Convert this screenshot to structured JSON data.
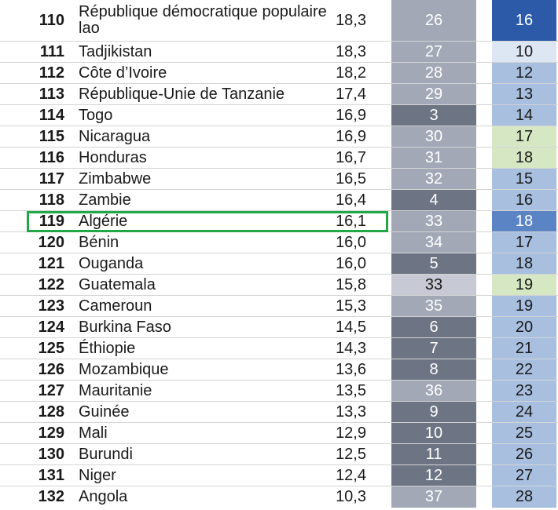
{
  "colors": {
    "c1_dark": "#6d7584",
    "c1_mid": "#a2a8b6",
    "c1_light": "#c7cad4",
    "c2_dark": "#2c5aa8",
    "c2_mid": "#5b84c4",
    "c2_base": "#a9bfe0",
    "c2_pale": "#dde6f3",
    "c2_green": "#d6e8c3",
    "highlight_border": "#22a746"
  },
  "rows": [
    {
      "rank": "110",
      "country": "République démocratique populaire lao",
      "score": "18,3",
      "col1": "26",
      "col2": "16",
      "c1": "c1_mid",
      "c2": "c2_dark"
    },
    {
      "rank": "111",
      "country": "Tadjikistan",
      "score": "18,3",
      "col1": "27",
      "col2": "10",
      "c1": "c1_mid",
      "c2": "c2_pale"
    },
    {
      "rank": "112",
      "country": "Côte d’Ivoire",
      "score": "18,2",
      "col1": "28",
      "col2": "12",
      "c1": "c1_mid",
      "c2": "c2_base"
    },
    {
      "rank": "113",
      "country": "République-Unie de Tanzanie",
      "score": "17,4",
      "col1": "29",
      "col2": "13",
      "c1": "c1_mid",
      "c2": "c2_base"
    },
    {
      "rank": "114",
      "country": "Togo",
      "score": "16,9",
      "col1": "3",
      "col2": "14",
      "c1": "c1_dark",
      "c2": "c2_base"
    },
    {
      "rank": "115",
      "country": "Nicaragua",
      "score": "16,9",
      "col1": "30",
      "col2": "17",
      "c1": "c1_mid",
      "c2": "c2_green"
    },
    {
      "rank": "116",
      "country": "Honduras",
      "score": "16,7",
      "col1": "31",
      "col2": "18",
      "c1": "c1_mid",
      "c2": "c2_green"
    },
    {
      "rank": "117",
      "country": "Zimbabwe",
      "score": "16,5",
      "col1": "32",
      "col2": "15",
      "c1": "c1_mid",
      "c2": "c2_base"
    },
    {
      "rank": "118",
      "country": "Zambie",
      "score": "16,4",
      "col1": "4",
      "col2": "16",
      "c1": "c1_dark",
      "c2": "c2_base"
    },
    {
      "rank": "119",
      "country": "Algérie",
      "score": "16,1",
      "col1": "33",
      "col2": "18",
      "c1": "c1_mid",
      "c2": "c2_mid"
    },
    {
      "rank": "120",
      "country": "Bénin",
      "score": "16,0",
      "col1": "34",
      "col2": "17",
      "c1": "c1_mid",
      "c2": "c2_base"
    },
    {
      "rank": "121",
      "country": "Ouganda",
      "score": "16,0",
      "col1": "5",
      "col2": "18",
      "c1": "c1_dark",
      "c2": "c2_base"
    },
    {
      "rank": "122",
      "country": "Guatemala",
      "score": "15,8",
      "col1": "33",
      "col2": "19",
      "c1": "c1_light",
      "c2": "c2_green"
    },
    {
      "rank": "123",
      "country": "Cameroun",
      "score": "15,3",
      "col1": "35",
      "col2": "19",
      "c1": "c1_mid",
      "c2": "c2_base"
    },
    {
      "rank": "124",
      "country": "Burkina Faso",
      "score": "14,5",
      "col1": "6",
      "col2": "20",
      "c1": "c1_dark",
      "c2": "c2_base"
    },
    {
      "rank": "125",
      "country": "Éthiopie",
      "score": "14,3",
      "col1": "7",
      "col2": "21",
      "c1": "c1_dark",
      "c2": "c2_base"
    },
    {
      "rank": "126",
      "country": "Mozambique",
      "score": "13,6",
      "col1": "8",
      "col2": "22",
      "c1": "c1_dark",
      "c2": "c2_base"
    },
    {
      "rank": "127",
      "country": "Mauritanie",
      "score": "13,5",
      "col1": "36",
      "col2": "23",
      "c1": "c1_mid",
      "c2": "c2_base"
    },
    {
      "rank": "128",
      "country": "Guinée",
      "score": "13,3",
      "col1": "9",
      "col2": "24",
      "c1": "c1_dark",
      "c2": "c2_base"
    },
    {
      "rank": "129",
      "country": "Mali",
      "score": "12,9",
      "col1": "10",
      "col2": "25",
      "c1": "c1_dark",
      "c2": "c2_base"
    },
    {
      "rank": "130",
      "country": "Burundi",
      "score": "12,5",
      "col1": "11",
      "col2": "26",
      "c1": "c1_dark",
      "c2": "c2_base"
    },
    {
      "rank": "131",
      "country": "Niger",
      "score": "12,4",
      "col1": "12",
      "col2": "27",
      "c1": "c1_dark",
      "c2": "c2_base"
    },
    {
      "rank": "132",
      "country": "Angola",
      "score": "10,3",
      "col1": "37",
      "col2": "28",
      "c1": "c1_mid",
      "c2": "c2_base"
    }
  ],
  "highlighted_rank": "119"
}
